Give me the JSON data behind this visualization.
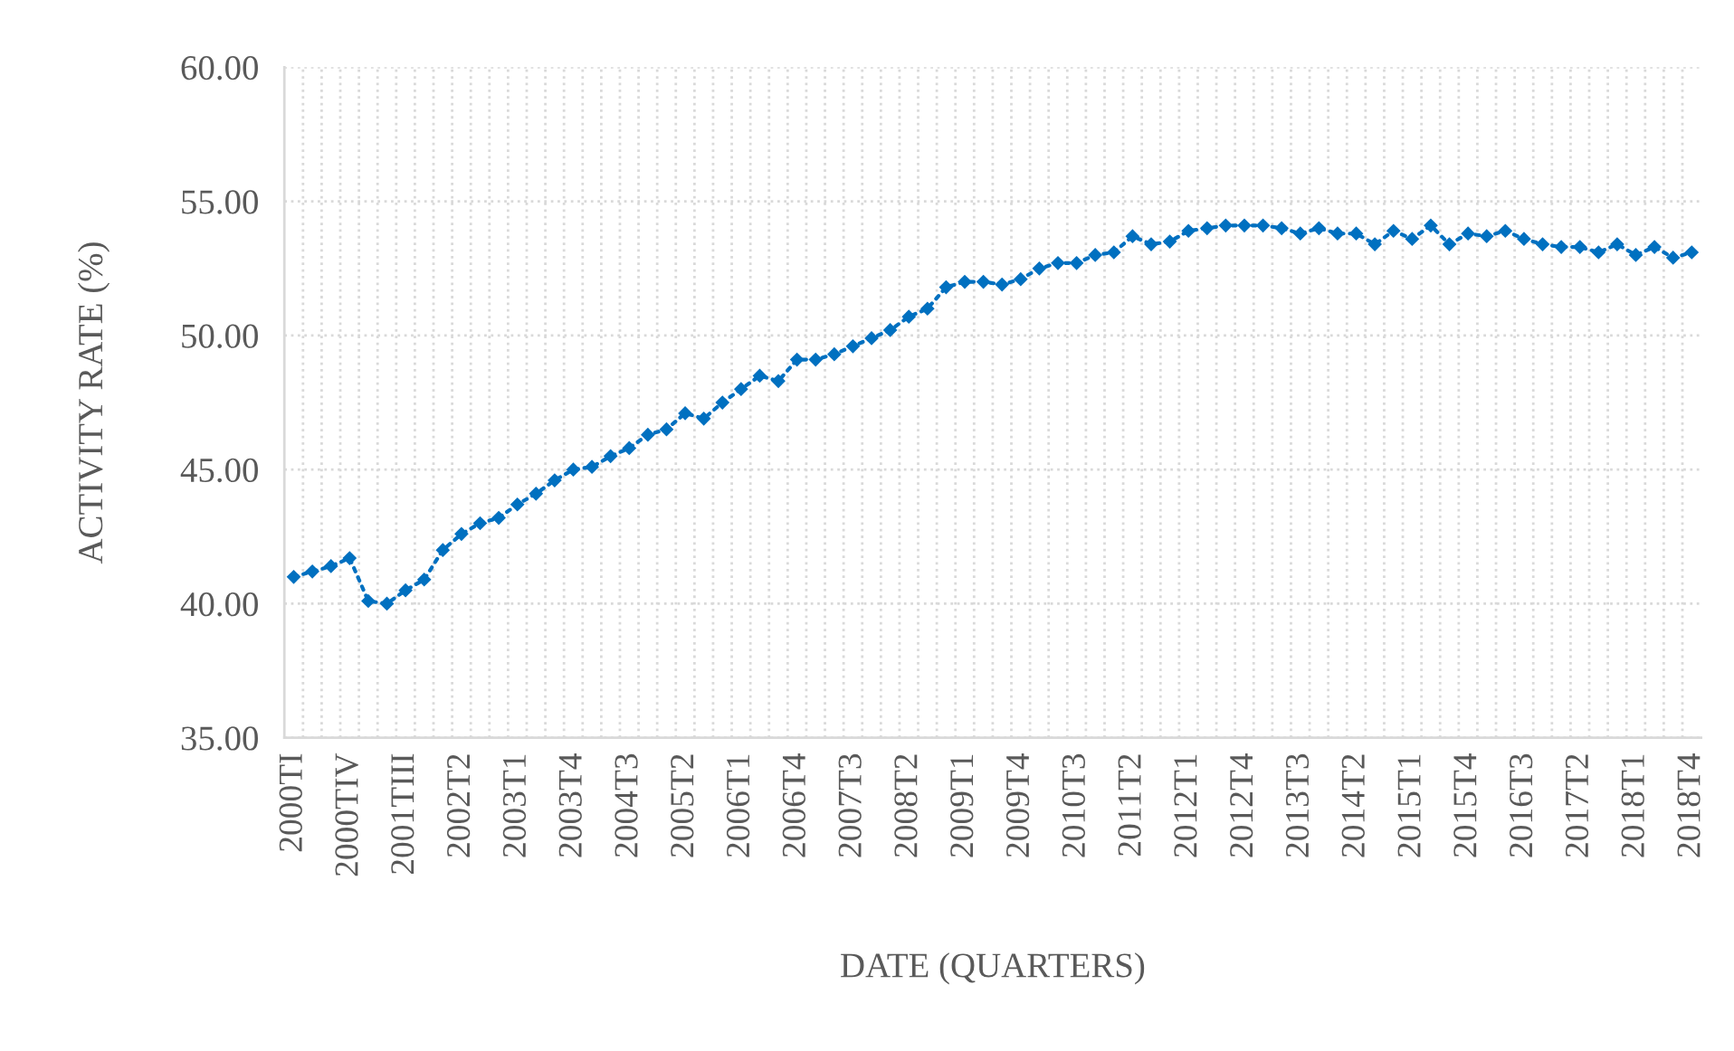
{
  "chart_data": {
    "type": "line",
    "xlabel": "DATE (QUARTERS)",
    "ylabel": "ACTIVITY RATE (%)",
    "categories": [
      "2000TI",
      null,
      null,
      "2000TIV",
      null,
      null,
      "2001TIII",
      null,
      null,
      "2002T2",
      null,
      null,
      "2003T1",
      null,
      null,
      "2003T4",
      null,
      null,
      "2004T3",
      null,
      null,
      "2005T2",
      null,
      null,
      "2006T1",
      null,
      null,
      "2006T4",
      null,
      null,
      "2007T3",
      null,
      null,
      "2008T2",
      null,
      null,
      "2009T1",
      null,
      null,
      "2009T4",
      null,
      null,
      "2010T3",
      null,
      null,
      "2011T2",
      null,
      null,
      "2012T1",
      null,
      null,
      "2012T4",
      null,
      null,
      "2013T3",
      null,
      null,
      "2014T2",
      null,
      null,
      "2015T1",
      null,
      null,
      "2015T4",
      null,
      null,
      "2016T3",
      null,
      null,
      "2017T2",
      null,
      null,
      "2018T1",
      null,
      null,
      "2018T4"
    ],
    "series": [
      {
        "color": "#0070c0",
        "values": [
          41.0,
          41.2,
          41.4,
          41.7,
          40.1,
          40.0,
          40.5,
          40.9,
          42.0,
          42.6,
          43.0,
          43.2,
          43.7,
          44.1,
          44.6,
          45.0,
          45.1,
          45.5,
          45.8,
          46.3,
          46.5,
          47.1,
          46.9,
          47.5,
          48.0,
          48.5,
          48.3,
          49.1,
          49.1,
          49.3,
          49.6,
          49.9,
          50.2,
          50.7,
          51.0,
          51.8,
          52.0,
          52.0,
          51.9,
          52.1,
          52.5,
          52.7,
          52.7,
          53.0,
          53.1,
          53.7,
          53.4,
          53.5,
          53.9,
          54.0,
          54.1,
          54.1,
          54.1,
          54.0,
          53.8,
          54.0,
          53.8,
          53.8,
          53.4,
          53.9,
          53.6,
          54.1,
          53.4,
          53.8,
          53.7,
          53.9,
          53.6,
          53.4,
          53.3,
          53.3,
          53.1,
          53.4,
          53.0,
          53.3,
          52.9,
          53.1
        ]
      }
    ],
    "ylim": [
      35,
      60
    ],
    "yticks": [
      {
        "value": 35,
        "label": "35.00"
      },
      {
        "value": 40,
        "label": "40.00"
      },
      {
        "value": 45,
        "label": "45.00"
      },
      {
        "value": 50,
        "label": "50.00"
      },
      {
        "value": 55,
        "label": "55.00"
      },
      {
        "value": 60,
        "label": "60.00"
      }
    ],
    "grid": true,
    "marker": "diamond",
    "line_style": "dotted"
  }
}
